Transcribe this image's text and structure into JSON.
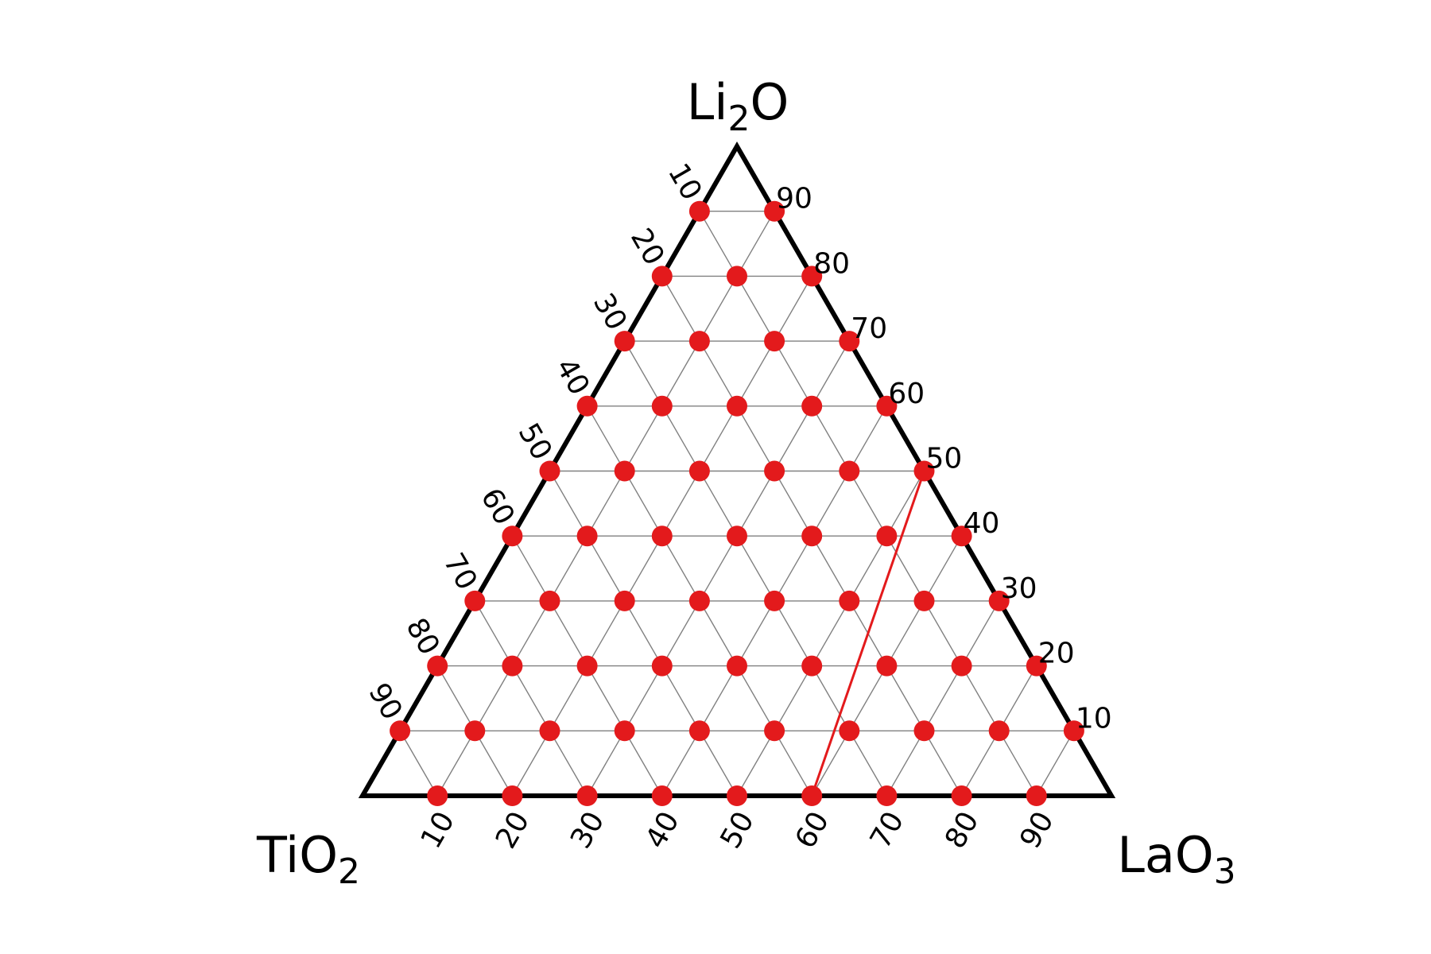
{
  "chart_data": {
    "type": "ternary",
    "title": "",
    "vertices": {
      "top": {
        "base": "Li",
        "sub": "2",
        "tail": "O"
      },
      "left": {
        "base": "TiO",
        "sub": "2",
        "tail": ""
      },
      "right": {
        "base": "LaO",
        "sub": "3",
        "tail": ""
      }
    },
    "grid_step": 10,
    "ticks": {
      "left_edge": [
        "10",
        "20",
        "30",
        "40",
        "50",
        "60",
        "70",
        "80",
        "90"
      ],
      "right_edge": [
        "90",
        "80",
        "70",
        "60",
        "50",
        "40",
        "30",
        "20",
        "10"
      ],
      "bottom_edge": [
        "10",
        "20",
        "30",
        "40",
        "50",
        "60",
        "70",
        "80",
        "90"
      ]
    },
    "points_rule": "all compositions on the 10% grid, excluding the three pure-component vertices",
    "tie_line": {
      "from": {
        "right_edge_value": 50
      },
      "to": {
        "bottom_edge_value": 60
      }
    },
    "colors": {
      "points": "#e31a1c",
      "tie_line": "#e31a1c",
      "frame": "#000000",
      "grid": "#808080"
    }
  }
}
